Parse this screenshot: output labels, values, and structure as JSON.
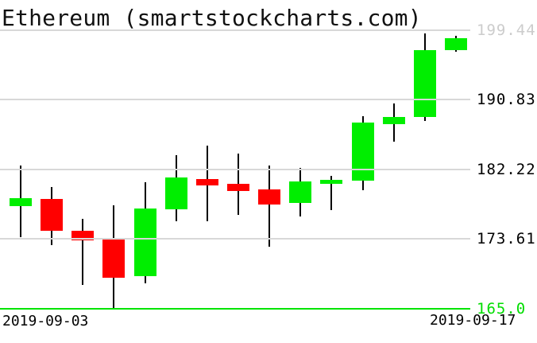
{
  "title": "Ethereum (smartstockcharts.com)",
  "colors": {
    "up": "#00ee00",
    "down": "#ff0000",
    "wick": "#000000",
    "grid": "#d8d8d8",
    "bottom_line": "#00e500",
    "label_top_gray": "#cccccc",
    "label_black": "#000000",
    "label_green": "#00dd00",
    "background": "#ffffff"
  },
  "x_axis": {
    "start_label": "2019-09-03",
    "end_label": "2019-09-17"
  },
  "y_axis": {
    "ticks": [
      {
        "value": 199.44,
        "label": "199.44",
        "style": "gray"
      },
      {
        "value": 190.83,
        "label": "190.83",
        "style": "black"
      },
      {
        "value": 182.22,
        "label": "182.22",
        "style": "black"
      },
      {
        "value": 173.61,
        "label": "173.61",
        "style": "black"
      },
      {
        "value": 165.0,
        "label": "165.0",
        "style": "green"
      }
    ]
  },
  "chart_data": {
    "type": "candlestick",
    "title": "Ethereum (smartstockcharts.com)",
    "xlabel": "",
    "ylabel": "",
    "ylim": [
      165.0,
      199.44
    ],
    "yticks": [
      199.44,
      190.83,
      182.22,
      173.61,
      165.0
    ],
    "grid": true,
    "x_tick_labels_visible": [
      "2019-09-03",
      "2019-09-17"
    ],
    "candles": [
      {
        "date": "2019-09-03",
        "open": 177.7,
        "high": 182.7,
        "low": 173.9,
        "close": 178.7
      },
      {
        "date": "2019-09-04",
        "open": 178.6,
        "high": 180.1,
        "low": 172.9,
        "close": 174.6
      },
      {
        "date": "2019-09-05",
        "open": 174.6,
        "high": 176.1,
        "low": 168.0,
        "close": 173.5
      },
      {
        "date": "2019-09-06",
        "open": 173.7,
        "high": 177.8,
        "low": 165.1,
        "close": 168.8
      },
      {
        "date": "2019-09-07",
        "open": 169.0,
        "high": 180.6,
        "low": 168.1,
        "close": 177.4
      },
      {
        "date": "2019-09-08",
        "open": 177.3,
        "high": 184.0,
        "low": 175.8,
        "close": 181.2
      },
      {
        "date": "2019-09-09",
        "open": 181.0,
        "high": 185.2,
        "low": 175.8,
        "close": 180.3
      },
      {
        "date": "2019-09-10",
        "open": 180.4,
        "high": 184.2,
        "low": 176.6,
        "close": 179.6
      },
      {
        "date": "2019-09-11",
        "open": 179.8,
        "high": 182.7,
        "low": 172.7,
        "close": 177.9
      },
      {
        "date": "2019-09-12",
        "open": 178.1,
        "high": 182.4,
        "low": 176.4,
        "close": 180.7
      },
      {
        "date": "2019-09-13",
        "open": 180.4,
        "high": 181.4,
        "low": 177.2,
        "close": 180.9
      },
      {
        "date": "2019-09-14",
        "open": 180.8,
        "high": 188.8,
        "low": 179.7,
        "close": 188.0
      },
      {
        "date": "2019-09-15",
        "open": 187.8,
        "high": 190.4,
        "low": 185.7,
        "close": 188.7
      },
      {
        "date": "2019-09-16",
        "open": 188.7,
        "high": 199.0,
        "low": 188.2,
        "close": 197.0
      },
      {
        "date": "2019-09-17",
        "open": 197.0,
        "high": 198.8,
        "low": 196.8,
        "close": 198.5
      }
    ]
  }
}
